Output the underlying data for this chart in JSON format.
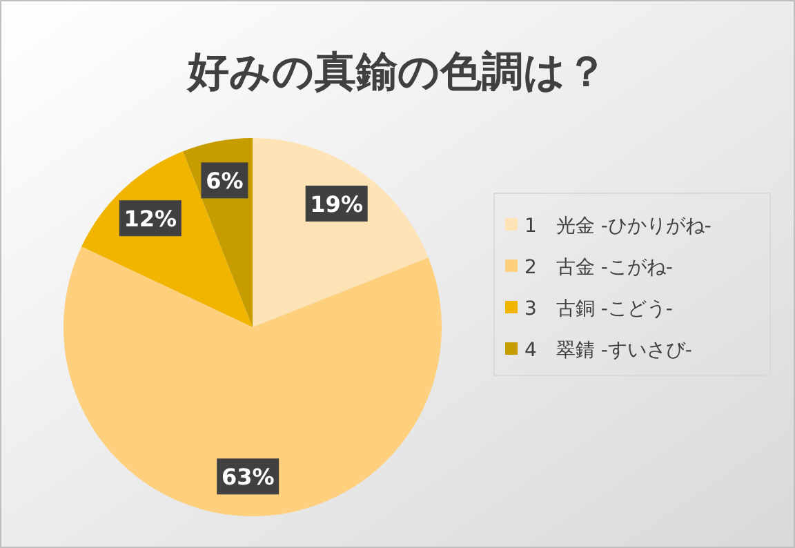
{
  "chart_data": {
    "type": "pie",
    "title": "好みの真鍮の色調は？",
    "categories": [
      "1　光金 -ひかりがね-",
      "2　古金 -こがね-",
      "3　古銅 -こどう-",
      "4　翠錆 -すいさび-"
    ],
    "values": [
      19,
      63,
      12,
      6
    ],
    "value_labels": [
      "19%",
      "63%",
      "12%",
      "6%"
    ],
    "colors": [
      "#fde3b5",
      "#fecf7c",
      "#f1b500",
      "#c69c00"
    ],
    "legend": "right"
  }
}
